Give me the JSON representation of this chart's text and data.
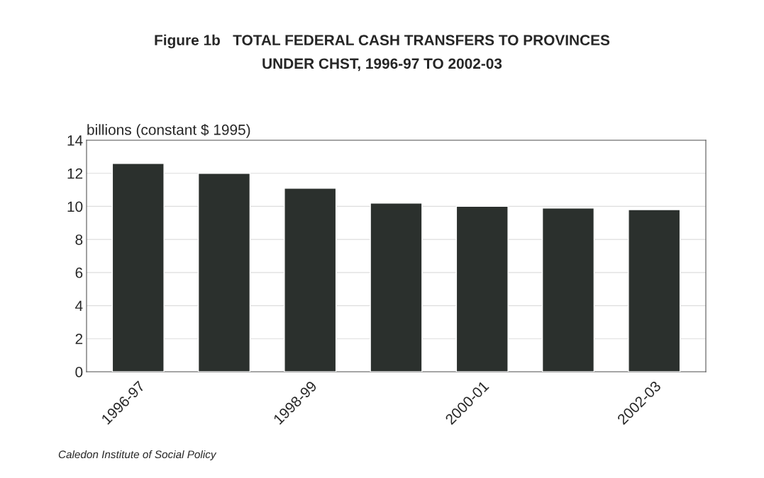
{
  "chart_data": {
    "type": "bar",
    "title": "Figure 1b   TOTAL FEDERAL CASH TRANSFERS TO PROVINCES\nUNDER CHST, 1996-97 TO 2002-03",
    "ylabel": "billions (constant $ 1995)",
    "categories": [
      "1996-97",
      null,
      "1998-99",
      null,
      "2000-01",
      null,
      "2002-03"
    ],
    "values": [
      12.6,
      12.0,
      11.1,
      10.2,
      10.0,
      9.9,
      9.8
    ],
    "color": "#2b302d",
    "ylim": [
      0,
      14
    ],
    "yticks": [
      0,
      2,
      4,
      6,
      8,
      10,
      12,
      14
    ],
    "grid": "y",
    "annotations": [
      "Caledon Institute of Social Policy"
    ]
  }
}
